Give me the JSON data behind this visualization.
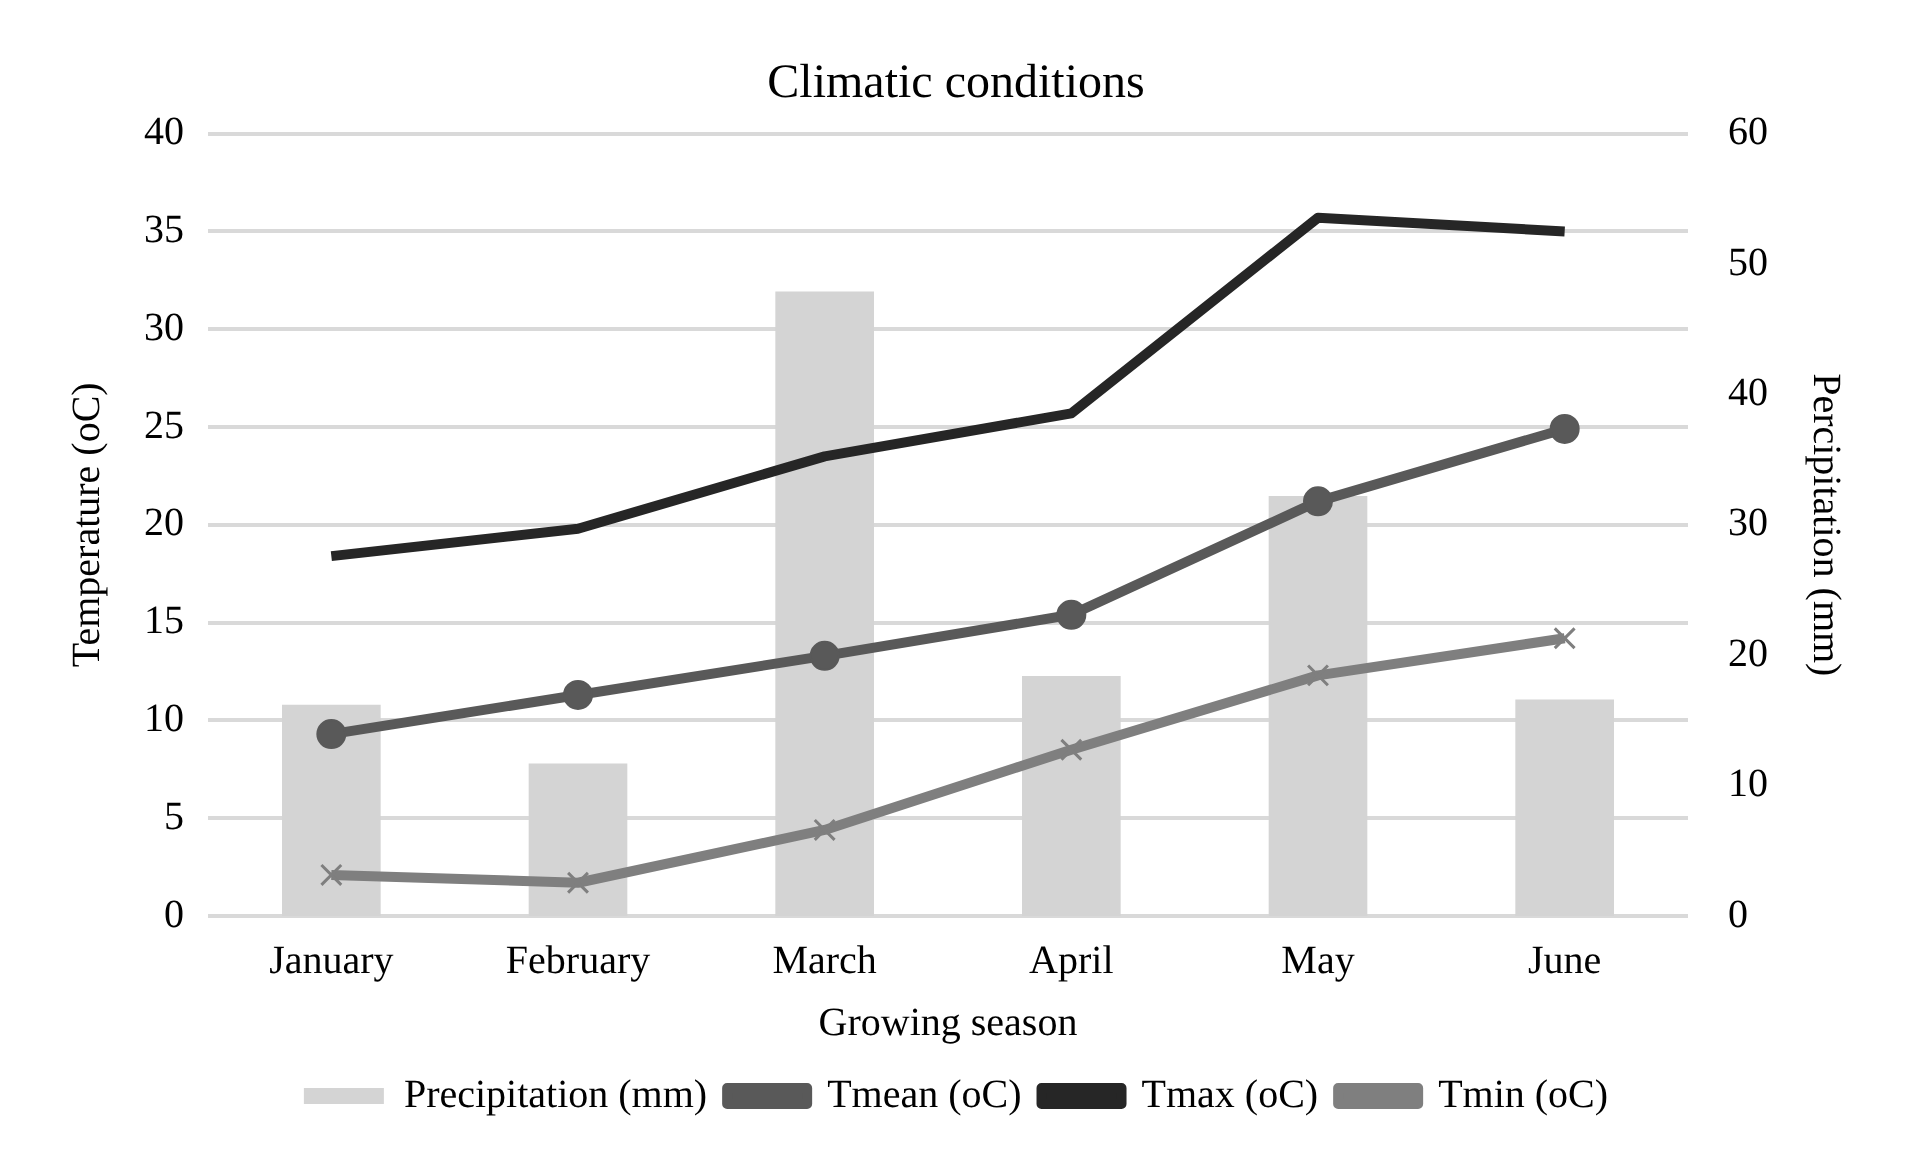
{
  "chart_data": {
    "type": "line",
    "title": "Climatic conditions",
    "xlabel": "Growing season",
    "ylabel": "Temperature (oC)",
    "y2label": "Percipitation (mm)",
    "categories": [
      "January",
      "February",
      "March",
      "April",
      "May",
      "June"
    ],
    "series": [
      {
        "name": "Precipitation (mm)",
        "type": "bar",
        "axis": "y2",
        "color": "#d4d4d4",
        "values": [
          16.2,
          11.7,
          47.9,
          18.4,
          32.2,
          16.6
        ]
      },
      {
        "name": "Tmean (oC)",
        "color": "#595959",
        "marker": "circle",
        "values": [
          9.3,
          11.3,
          13.3,
          15.4,
          21.2,
          24.9
        ]
      },
      {
        "name": "Tmax (oC)",
        "color": "#262626",
        "marker": "none",
        "values": [
          18.4,
          19.8,
          23.5,
          25.7,
          35.7,
          35.0
        ]
      },
      {
        "name": "Tmin (oC)",
        "color": "#7f7f7f",
        "marker": "cross",
        "values": [
          2.1,
          1.7,
          4.4,
          8.5,
          12.3,
          14.2
        ]
      }
    ],
    "ylim": [
      0,
      40
    ],
    "yticks": [
      0,
      5,
      10,
      15,
      20,
      25,
      30,
      35,
      40
    ],
    "y2lim": [
      0,
      60
    ],
    "y2ticks": [
      0,
      10,
      20,
      30,
      40,
      50,
      60
    ],
    "grid": "y",
    "legend": "bottom"
  }
}
